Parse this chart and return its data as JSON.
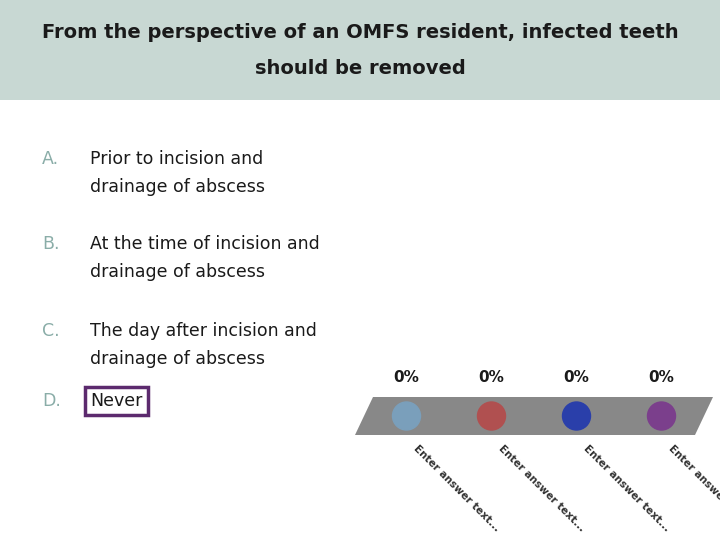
{
  "title_line1": "From the perspective of an OMFS resident, infected teeth",
  "title_line2": "should be removed",
  "title_bg_color": "#c8d8d3",
  "title_text_color": "#1a1a1a",
  "body_bg_color": "#ffffff",
  "options": [
    {
      "letter": "A.",
      "letter_color": "#8aada8",
      "text": "Prior to incision and\ndrainage of abscess"
    },
    {
      "letter": "B.",
      "letter_color": "#8aada8",
      "text": "At the time of incision and\ndrainage of abscess"
    },
    {
      "letter": "C.",
      "letter_color": "#8aada8",
      "text": "The day after incision and\ndrainage of abscess"
    },
    {
      "letter": "D.",
      "letter_color": "#8aada8",
      "text": "Never",
      "highlight": true,
      "highlight_color": "#5c2a6e"
    }
  ],
  "bar_colors": [
    "#7a9fbb",
    "#b05050",
    "#2a3faa",
    "#7b3f8c"
  ],
  "bar_percentages": [
    "0%",
    "0%",
    "0%",
    "0%"
  ],
  "bar_labels": [
    "Enter answer text...",
    "Enter answer text...",
    "Enter answer text...",
    "Enter answer text..."
  ],
  "platform_color": "#888888",
  "platform_color2": "#666666"
}
